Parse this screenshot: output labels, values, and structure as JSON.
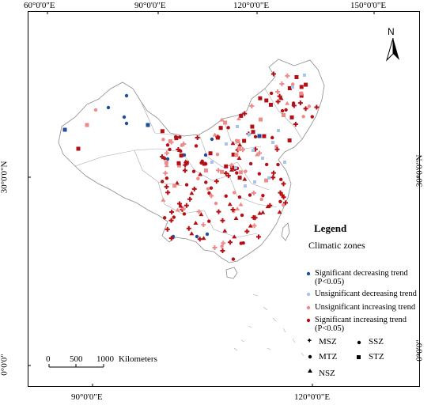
{
  "axes": {
    "top_ticks": [
      "60°0'0\"E",
      "90°0'0\"E",
      "120°0'0\"E",
      "150°0'0\"E"
    ],
    "bottom_ticks": [
      "90°0'0\"E",
      "120°0'0\"E"
    ],
    "left_ticks": [
      "30°0'0\"N",
      "0°0'0\""
    ],
    "right_ticks": [
      "30°0'0\"N",
      "0°0'0\""
    ]
  },
  "north_label": "N",
  "legend": {
    "title": "Legend",
    "subtitle": "Climatic zones",
    "trend_entries": [
      {
        "line1": "Significant decreasing trend",
        "line2": "(P<0.05)",
        "color": "#1f4e9c"
      },
      {
        "line1": "Unsignificant decreasing trend",
        "line2": "",
        "color": "#a9c4ec"
      },
      {
        "line1": "Unsignificant increasing trend",
        "line2": "",
        "color": "#ef8a8a"
      },
      {
        "line1": "Significant increasing trend",
        "line2": "(P<0.05)",
        "color": "#b40f14"
      }
    ],
    "zones": [
      "MSZ",
      "SSZ",
      "MTZ",
      "STZ",
      "NSZ"
    ]
  },
  "scale_bar": {
    "ticks": [
      "0",
      "500",
      "1000"
    ],
    "unit": "Kilometers"
  },
  "colors": {
    "sig_decrease": "#1f4e9c",
    "unsig_decrease": "#a9c4ec",
    "unsig_increase": "#ef8a8a",
    "sig_increase": "#b40f14",
    "border": "#8c8c8c"
  }
}
